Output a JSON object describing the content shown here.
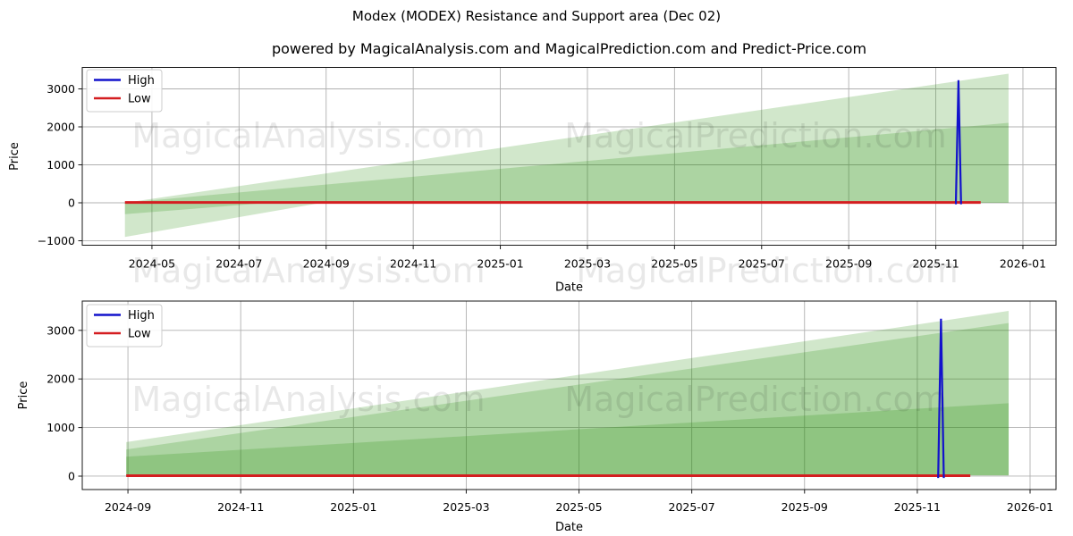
{
  "figure": {
    "suptitle": "Modex (MODEX) Resistance and Support area (Dec 02)",
    "subtitle": "powered by MagicalAnalysis.com and MagicalPrediction.com and Predict-Price.com",
    "watermark_texts": [
      "MagicalAnalysis.com",
      "MagicalPrediction.com"
    ],
    "colors": {
      "high": "#1212cc",
      "low": "#d41d20",
      "fill": "#288c0a",
      "grid": "#b0b0b0",
      "spine": "#1a1a1a",
      "watermark": "#000000",
      "legend_border": "#cccccc"
    }
  },
  "chart_data": [
    {
      "type": "area",
      "name": "top-chart",
      "xlabel": "Date",
      "ylabel": "Price",
      "x_unit": "months since 2024-01-01",
      "xlim": [
        2.4,
        24.76
      ],
      "ylim": [
        -1118,
        3565
      ],
      "x_ticks": [
        {
          "v": 4,
          "label": "2024-05"
        },
        {
          "v": 6,
          "label": "2024-07"
        },
        {
          "v": 8,
          "label": "2024-09"
        },
        {
          "v": 10,
          "label": "2024-11"
        },
        {
          "v": 12,
          "label": "2025-01"
        },
        {
          "v": 14,
          "label": "2025-03"
        },
        {
          "v": 16,
          "label": "2025-05"
        },
        {
          "v": 18,
          "label": "2025-07"
        },
        {
          "v": 20,
          "label": "2025-09"
        },
        {
          "v": 22,
          "label": "2025-11"
        },
        {
          "v": 24,
          "label": "2026-01"
        }
      ],
      "y_ticks": [
        {
          "v": -1000,
          "label": "−1000"
        },
        {
          "v": 0,
          "label": "0"
        },
        {
          "v": 1000,
          "label": "1000"
        },
        {
          "v": 2000,
          "label": "2000"
        },
        {
          "v": 3000,
          "label": "3000"
        }
      ],
      "legend": [
        {
          "label": "High",
          "color": "high"
        },
        {
          "label": "Low",
          "color": "low"
        }
      ],
      "areas": [
        {
          "name": "resistance-outer",
          "alpha": 0.21,
          "points": [
            [
              3.38,
              0
            ],
            [
              23.67,
              3400
            ],
            [
              23.67,
              0
            ]
          ]
        },
        {
          "name": "resistance-inner",
          "alpha": 0.21,
          "points": [
            [
              3.38,
              0
            ],
            [
              23.67,
              2105
            ],
            [
              23.67,
              0
            ]
          ]
        },
        {
          "name": "support-outer",
          "alpha": 0.21,
          "points": [
            [
              3.38,
              0
            ],
            [
              3.38,
              -900
            ],
            [
              7.9,
              0
            ]
          ]
        },
        {
          "name": "support-inner",
          "alpha": 0.21,
          "points": [
            [
              3.38,
              0
            ],
            [
              3.38,
              -300
            ],
            [
              6.67,
              0
            ]
          ]
        }
      ],
      "lines": [
        {
          "name": "low-line",
          "color": "low",
          "width": 3,
          "points": [
            [
              3.38,
              8
            ],
            [
              23.03,
              8
            ]
          ]
        },
        {
          "name": "high-spike",
          "color": "high",
          "width": 2.2,
          "points": [
            [
              22.46,
              -40
            ],
            [
              22.52,
              3230
            ],
            [
              22.58,
              -40
            ]
          ]
        }
      ]
    },
    {
      "type": "area",
      "name": "bottom-chart",
      "xlabel": "Date",
      "ylabel": "Price",
      "x_unit": "months since 2024-01-01",
      "xlim": [
        7.19,
        24.46
      ],
      "ylim": [
        -276,
        3603
      ],
      "x_ticks": [
        {
          "v": 8,
          "label": "2024-09"
        },
        {
          "v": 10,
          "label": "2024-11"
        },
        {
          "v": 12,
          "label": "2025-01"
        },
        {
          "v": 14,
          "label": "2025-03"
        },
        {
          "v": 16,
          "label": "2025-05"
        },
        {
          "v": 18,
          "label": "2025-07"
        },
        {
          "v": 20,
          "label": "2025-09"
        },
        {
          "v": 22,
          "label": "2025-11"
        },
        {
          "v": 24,
          "label": "2026-01"
        }
      ],
      "y_ticks": [
        {
          "v": 0,
          "label": "0"
        },
        {
          "v": 1000,
          "label": "1000"
        },
        {
          "v": 2000,
          "label": "2000"
        },
        {
          "v": 3000,
          "label": "3000"
        }
      ],
      "legend": [
        {
          "label": "High",
          "color": "high"
        },
        {
          "label": "Low",
          "color": "low"
        }
      ],
      "areas": [
        {
          "name": "band-outer",
          "alpha": 0.21,
          "points": [
            [
              7.97,
              15
            ],
            [
              7.97,
              700
            ],
            [
              23.62,
              3400
            ],
            [
              23.62,
              15
            ]
          ]
        },
        {
          "name": "band-middle",
          "alpha": 0.21,
          "points": [
            [
              7.97,
              15
            ],
            [
              7.97,
              550
            ],
            [
              23.62,
              3150
            ],
            [
              23.62,
              15
            ]
          ]
        },
        {
          "name": "band-inner",
          "alpha": 0.21,
          "points": [
            [
              7.97,
              15
            ],
            [
              7.97,
              400
            ],
            [
              23.62,
              1500
            ],
            [
              23.62,
              15
            ]
          ]
        }
      ],
      "lines": [
        {
          "name": "low-line",
          "color": "low",
          "width": 3,
          "points": [
            [
              7.97,
              8
            ],
            [
              22.94,
              8
            ]
          ]
        },
        {
          "name": "high-spike",
          "color": "high",
          "width": 2.2,
          "points": [
            [
              22.37,
              -40
            ],
            [
              22.42,
              3240
            ],
            [
              22.47,
              -40
            ]
          ]
        }
      ]
    }
  ]
}
